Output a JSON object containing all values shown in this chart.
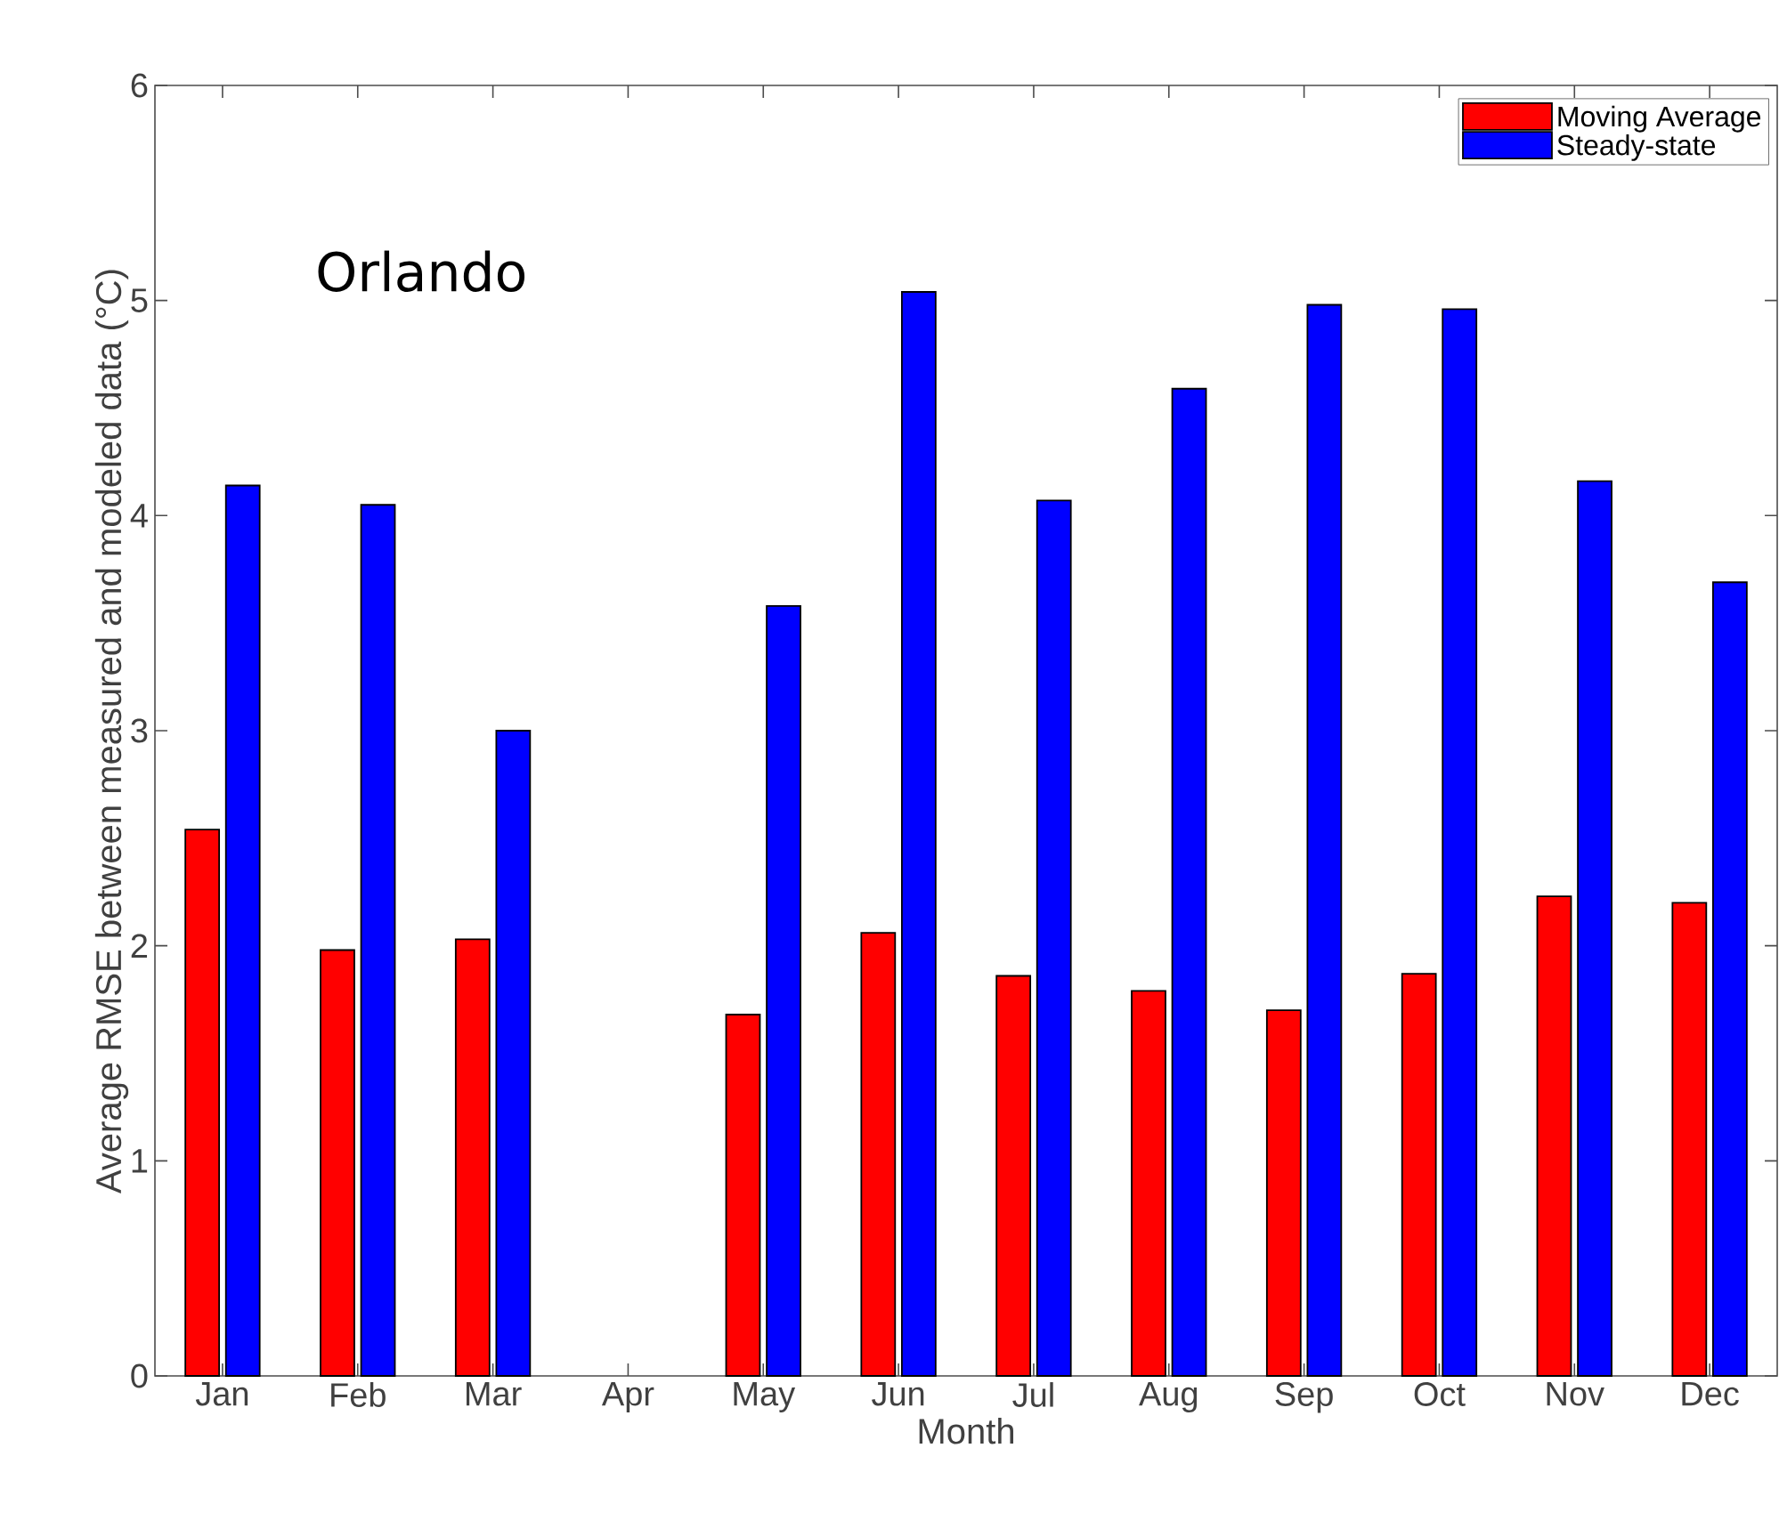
{
  "chart_data": {
    "type": "bar",
    "xlabel": "Month",
    "ylabel": "Average RMSE between measured and modeled data (°C)",
    "categories": [
      "Jan",
      "Feb",
      "Mar",
      "Apr",
      "May",
      "Jun",
      "Jul",
      "Aug",
      "Sep",
      "Oct",
      "Nov",
      "Dec"
    ],
    "series": [
      {
        "name": "Moving Average",
        "color": "#ff0000",
        "values": [
          2.54,
          1.98,
          2.03,
          null,
          1.68,
          2.06,
          1.86,
          1.79,
          1.7,
          1.87,
          2.23,
          2.2
        ]
      },
      {
        "name": "Steady-state",
        "color": "#0000ff",
        "values": [
          4.14,
          4.05,
          3.0,
          null,
          3.58,
          5.04,
          4.07,
          4.59,
          4.98,
          4.96,
          4.16,
          3.69
        ]
      }
    ],
    "ylim": [
      0,
      6
    ],
    "yticks": [
      0,
      1,
      2,
      3,
      4,
      5,
      6
    ],
    "grid": false,
    "legend": "top right",
    "annotations": [
      "Orlando"
    ]
  }
}
